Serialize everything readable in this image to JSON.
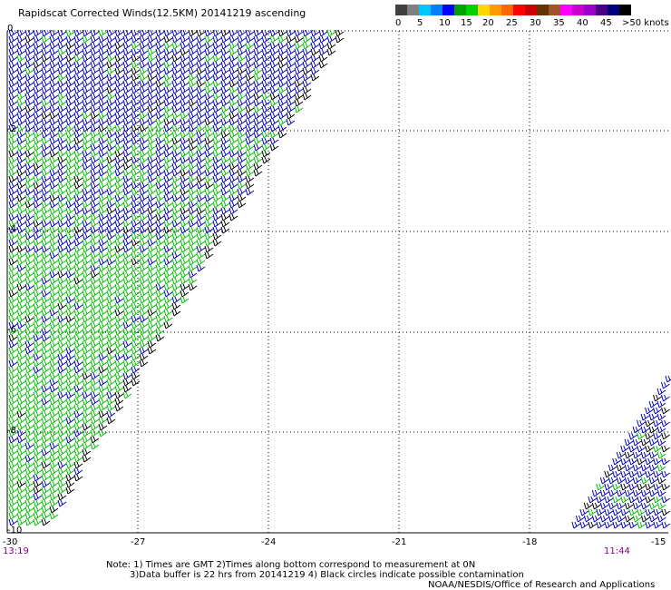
{
  "title": "Rapidscat Corrected Winds(12.5KM) 20141219 ascending",
  "scale": {
    "colors": [
      "#404040",
      "#7f7f7f",
      "#00c8ff",
      "#0080ff",
      "#0000ff",
      "#00a000",
      "#00d000",
      "#ffd700",
      "#ff9900",
      "#ff6600",
      "#ff0000",
      "#cc0000",
      "#663300",
      "#a0522d",
      "#ff00ff",
      "#cc00cc",
      "#9900cc",
      "#4b0082",
      "#000080",
      "#000000"
    ],
    "labels": [
      "0",
      "5",
      "10",
      "15",
      "20",
      "25",
      "30",
      "35",
      "40",
      "45",
      ">50 knots"
    ]
  },
  "axes": {
    "x_ticks": [
      "-30",
      "-27",
      "-24",
      "-21",
      "-18",
      "-15"
    ],
    "y_ticks": [
      "0",
      "-2",
      "-4",
      "-6",
      "-8",
      "-10"
    ],
    "xlim": [
      -30,
      -15
    ],
    "ylim": [
      -10,
      0
    ]
  },
  "times": {
    "left": "13:19",
    "right": "11:44"
  },
  "notes": {
    "line1": "Note: 1) Times are GMT 2)Times along bottom correspond to measurement at 0N",
    "line2": "3)Data buffer is 22 hrs from 20141219 4) Black circles indicate possible contamination",
    "line3": "NOAA/NESDIS/Office of Research and Applications"
  },
  "wind_colors": {
    "low": "#00c000",
    "mid": "#0000c0",
    "high": "#000000"
  }
}
